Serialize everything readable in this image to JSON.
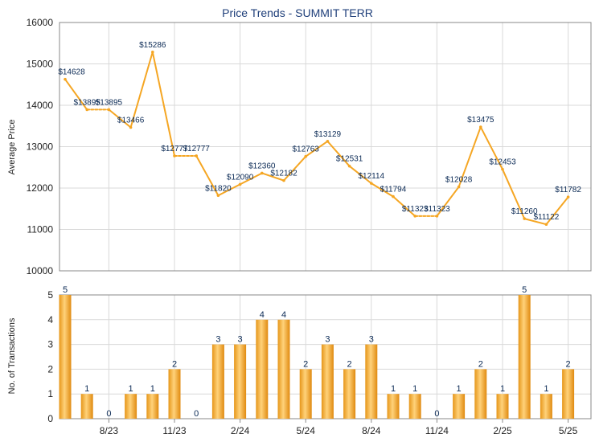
{
  "chart_data": [
    {
      "type": "line",
      "title": "Price Trends - SUMMIT TERR",
      "ylabel": "Average Price",
      "ylim": [
        10000,
        16000
      ],
      "yticks": [
        10000,
        11000,
        12000,
        13000,
        14000,
        15000,
        16000
      ],
      "grid": true,
      "line_color": "#f5a623",
      "values": [
        14628,
        13895,
        13895,
        13466,
        15286,
        12777,
        12777,
        11820,
        12090,
        12360,
        12182,
        12763,
        13129,
        12531,
        12114,
        11794,
        11323,
        11323,
        12028,
        13475,
        12453,
        11260,
        11122,
        11782
      ],
      "labels": [
        "$14628",
        "$13895",
        "$13895",
        "$13466",
        "$15286",
        "$12777",
        "$12777",
        "$11820",
        "$12090",
        "$12360",
        "$12182",
        "$12763",
        "$13129",
        "$12531",
        "$12114",
        "$11794",
        "$11323",
        "$11323",
        "$12028",
        "$13475",
        "$12453",
        "$11260",
        "$11122",
        "$11782"
      ],
      "dashed_segments_after_index": [
        1,
        5,
        16
      ]
    },
    {
      "type": "bar",
      "ylabel": "No. of Transactions",
      "ylim": [
        0,
        5
      ],
      "yticks": [
        0,
        1,
        2,
        3,
        4,
        5
      ],
      "grid": true,
      "bar_color": "#f5a623",
      "values": [
        5,
        1,
        0,
        1,
        1,
        2,
        0,
        3,
        3,
        4,
        4,
        2,
        3,
        2,
        3,
        1,
        1,
        0,
        1,
        2,
        1,
        5,
        1,
        2
      ],
      "x_tick_labels": [
        {
          "label": "8/23",
          "index": 2
        },
        {
          "label": "11/23",
          "index": 5
        },
        {
          "label": "2/24",
          "index": 8
        },
        {
          "label": "5/24",
          "index": 11
        },
        {
          "label": "8/24",
          "index": 14
        },
        {
          "label": "11/24",
          "index": 17
        },
        {
          "label": "2/25",
          "index": 20
        },
        {
          "label": "5/25",
          "index": 23
        }
      ]
    }
  ]
}
